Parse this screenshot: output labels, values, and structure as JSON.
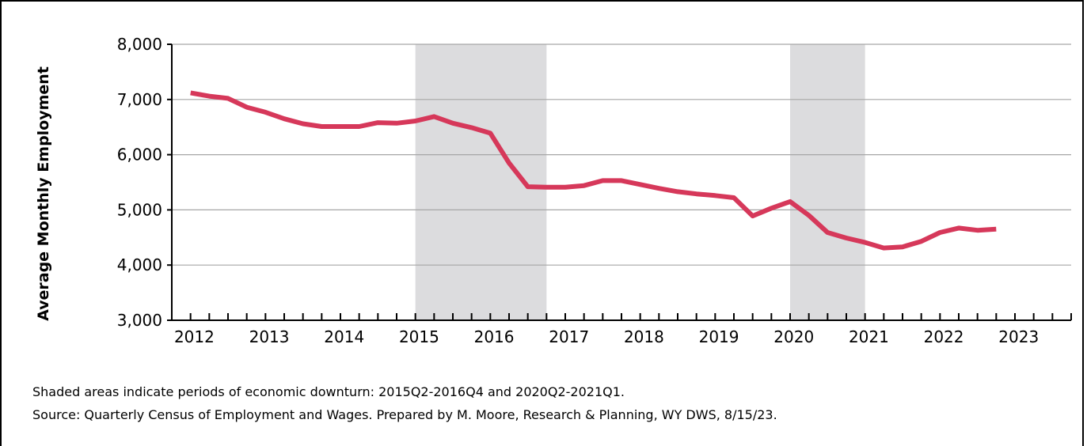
{
  "chart_data": {
    "type": "line",
    "ylabel": "Average Monthly Employment",
    "xlim": [
      2011.75,
      2023.75
    ],
    "ylim": [
      3000,
      8000
    ],
    "yticks": [
      3000,
      4000,
      5000,
      6000,
      7000,
      8000
    ],
    "ytick_labels": [
      "3,000",
      "4,000",
      "5,000",
      "6,000",
      "7,000",
      "8,000"
    ],
    "xtick_labels": [
      "2012",
      "2013",
      "2014",
      "2015",
      "2016",
      "2017",
      "2018",
      "2019",
      "2020",
      "2021",
      "2022",
      "2023"
    ],
    "grid": "horizontal",
    "colors": {
      "line": "#d6385a",
      "shade": "#dcdcde",
      "grid": "#a6a6a6",
      "axis": "#000000"
    },
    "shaded_periods": [
      [
        2015.0,
        2016.75
      ],
      [
        2020.0,
        2021.0
      ]
    ],
    "series": [
      {
        "x": [
          2012.0,
          2012.25,
          2012.5,
          2012.75,
          2013.0,
          2013.25,
          2013.5,
          2013.75,
          2014.0,
          2014.25,
          2014.5,
          2014.75,
          2015.0,
          2015.25,
          2015.5,
          2015.75,
          2016.0,
          2016.25,
          2016.5,
          2016.75,
          2017.0,
          2017.25,
          2017.5,
          2017.75,
          2018.0,
          2018.25,
          2018.5,
          2018.75,
          2019.0,
          2019.25,
          2019.5,
          2019.75,
          2020.0,
          2020.25,
          2020.5,
          2020.75,
          2021.0,
          2021.25,
          2021.5,
          2021.75,
          2022.0,
          2022.25,
          2022.5,
          2022.75
        ],
        "y": [
          7120,
          7060,
          7020,
          6860,
          6770,
          6650,
          6560,
          6510,
          6510,
          6510,
          6580,
          6570,
          6610,
          6690,
          6570,
          6490,
          6390,
          5850,
          5420,
          5410,
          5410,
          5440,
          5530,
          5530,
          5460,
          5390,
          5330,
          5290,
          5260,
          5220,
          4890,
          5030,
          5150,
          4900,
          4590,
          4490,
          4410,
          4310,
          4330,
          4430,
          4590,
          4670,
          4630,
          4650
        ]
      }
    ]
  },
  "notes": {
    "line1": "Shaded areas indicate periods of economic downturn: 2015Q2-2016Q4 and 2020Q2-2021Q1.",
    "line2": "Source: Quarterly Census of Employment and Wages. Prepared by M. Moore, Research & Planning, WY DWS, 8/15/23."
  }
}
